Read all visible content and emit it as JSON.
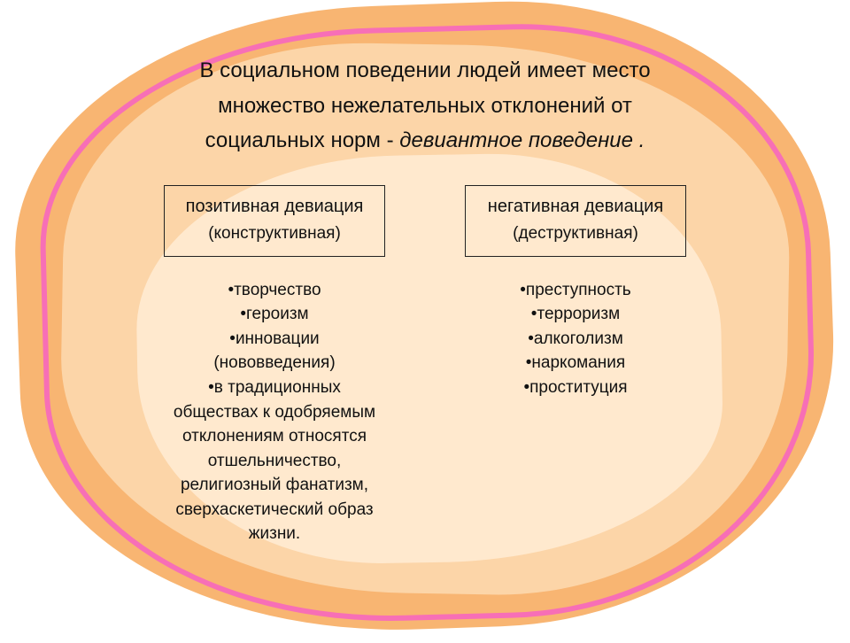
{
  "colors": {
    "blob_outer": "#f8b572",
    "blob_middle": "#fcd5a8",
    "blob_inner": "#ffe9ce",
    "pink_frame": "#f76fb6",
    "text": "#111111",
    "box_border": "#222222"
  },
  "typography": {
    "intro_fontsize": 24,
    "box_title_fontsize": 20,
    "box_sub_fontsize": 19,
    "bullet_fontsize": 19,
    "font_family": "Arial"
  },
  "intro": {
    "line1": "В социальном поведении людей имеет место",
    "line2": "множество нежелательных отклонений от",
    "line3_plain": "социальных норм - ",
    "line3_italic": "девиантное поведение ."
  },
  "left": {
    "box_title": "позитивная девиация",
    "box_sub": "(конструктивная)",
    "bullets": [
      "•творчество",
      "•героизм",
      "•инновации",
      "(нововведения)",
      "•в традиционных",
      "обществах к одобряемым",
      "отклонениям относятся",
      "отшельничество,",
      "религиозный фанатизм,",
      "сверхаскетический образ",
      "жизни."
    ]
  },
  "right": {
    "box_title": "негативная девиация",
    "box_sub": "(деструктивная)",
    "bullets": [
      "•преступность",
      "•терроризм",
      "•алкоголизм",
      "•наркомания",
      "•проституция"
    ]
  }
}
